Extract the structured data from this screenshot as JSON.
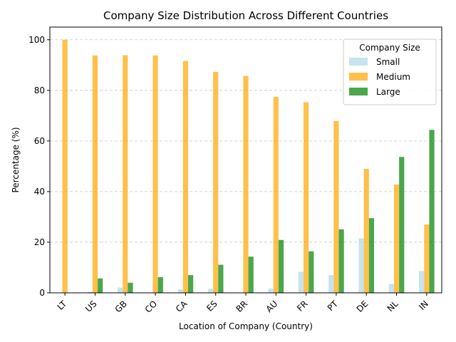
{
  "chart_data": {
    "type": "bar",
    "title": "Company Size Distribution Across Different Countries",
    "xlabel": "Location of Company (Country)",
    "ylabel": "Percentage (%)",
    "categories": [
      "LT",
      "US",
      "GB",
      "CO",
      "CA",
      "ES",
      "BR",
      "AU",
      "FR",
      "PT",
      "DE",
      "NL",
      "IN"
    ],
    "series": [
      {
        "name": "Small",
        "color": "#add8e6",
        "values": [
          0,
          0.5,
          2.1,
          0,
          1.4,
          1.6,
          0,
          1.7,
          8.3,
          7.0,
          21.5,
          3.5,
          8.6
        ]
      },
      {
        "name": "Medium",
        "color": "#ffa500",
        "values": [
          100,
          93.8,
          93.9,
          93.8,
          91.6,
          87.3,
          85.7,
          77.4,
          75.3,
          67.9,
          49.0,
          42.8,
          27.0
        ]
      },
      {
        "name": "Large",
        "color": "#008000",
        "values": [
          0,
          5.7,
          4.0,
          6.2,
          7.0,
          11.1,
          14.3,
          20.9,
          16.4,
          25.1,
          29.5,
          53.7,
          64.4
        ]
      }
    ],
    "ylim": [
      0,
      105
    ],
    "yticks": [
      "0",
      "20",
      "40",
      "60",
      "80",
      "100"
    ],
    "grid": "y-dashed",
    "legend": {
      "title": "Company Size",
      "placement": "top-right"
    }
  }
}
